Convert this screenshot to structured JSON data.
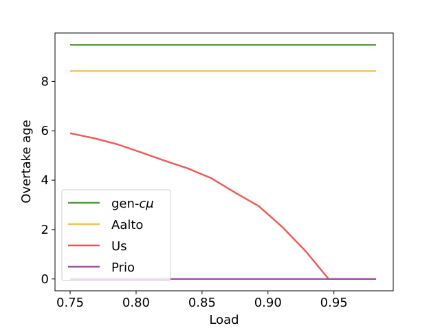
{
  "chart_data": {
    "type": "line",
    "title": "",
    "xlabel": "Load",
    "ylabel": "Overtake age",
    "xlim": [
      0.7385,
      0.995
    ],
    "ylim": [
      -0.48,
      9.96
    ],
    "xticks": [
      0.75,
      0.8,
      0.85,
      0.9,
      0.95
    ],
    "xtick_labels": [
      "0.75",
      "0.80",
      "0.85",
      "0.90",
      "0.95"
    ],
    "yticks": [
      0,
      2,
      4,
      6,
      8
    ],
    "ytick_labels": [
      "0",
      "2",
      "4",
      "6",
      "8"
    ],
    "grid": false,
    "legend_position": "lower-left",
    "series": [
      {
        "name": "gen-cμ",
        "color": "#4c9f38",
        "x": [
          0.75,
          0.982
        ],
        "y": [
          9.48,
          9.48
        ]
      },
      {
        "name": "Aalto",
        "color": "#ffbf3f",
        "x": [
          0.75,
          0.982
        ],
        "y": [
          8.42,
          8.42
        ]
      },
      {
        "name": "Us",
        "color": "#f2514c",
        "x": [
          0.75,
          0.768,
          0.786,
          0.804,
          0.821,
          0.839,
          0.857,
          0.875,
          0.893,
          0.911,
          0.929,
          0.946,
          0.964,
          0.982
        ],
        "y": [
          5.9,
          5.7,
          5.45,
          5.12,
          4.8,
          4.48,
          4.08,
          3.5,
          2.95,
          2.1,
          1.1,
          0.0,
          0.0,
          0.0
        ]
      },
      {
        "name": "Prio",
        "color": "#a050a8",
        "x": [
          0.75,
          0.982
        ],
        "y": [
          0.0,
          0.0
        ]
      }
    ],
    "legend": [
      {
        "label_main": "gen-",
        "label_italic": "cμ",
        "color": "#4c9f38"
      },
      {
        "label_main": "Aalto",
        "label_italic": "",
        "color": "#ffbf3f"
      },
      {
        "label_main": "Us",
        "label_italic": "",
        "color": "#f2514c"
      },
      {
        "label_main": "Prio",
        "label_italic": "",
        "color": "#a050a8"
      }
    ]
  }
}
